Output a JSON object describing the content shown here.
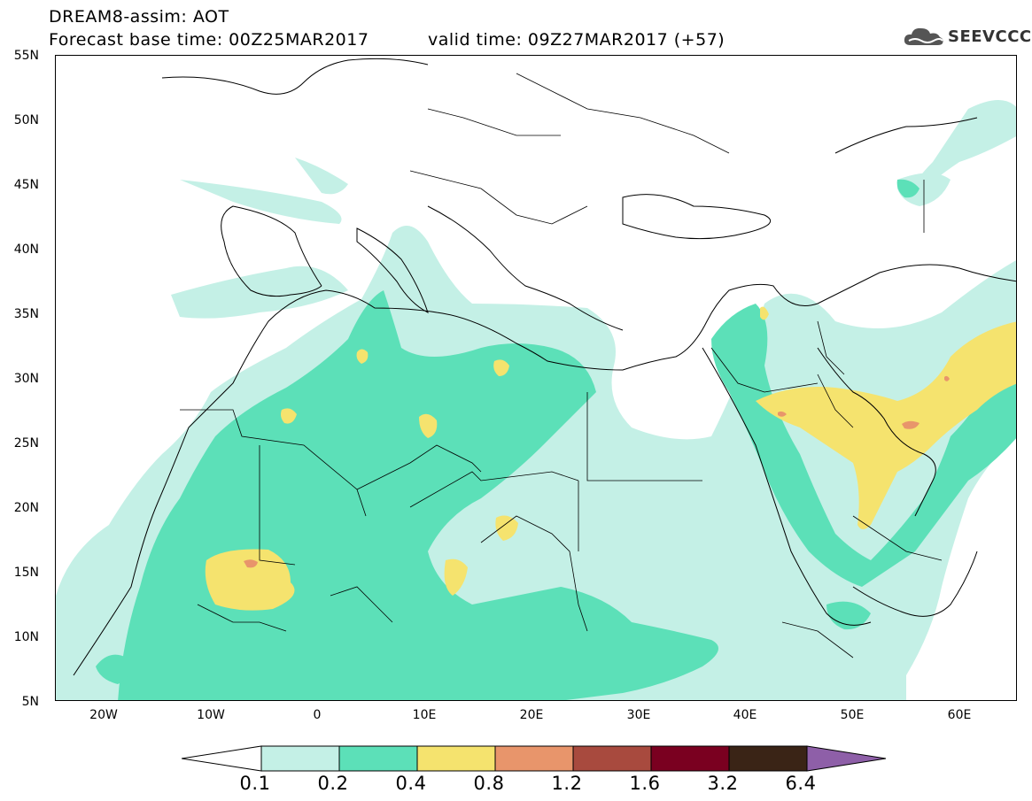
{
  "header": {
    "title_line1": "DREAM8-assim: AOT",
    "title_line2": "Forecast base time: 00Z25MAR2017",
    "valid_time": "valid time: 09Z27MAR2017 (+57)",
    "logo_text": "SEEVCCC"
  },
  "axes": {
    "lat_labels": [
      "55N",
      "50N",
      "45N",
      "40N",
      "35N",
      "30N",
      "25N",
      "20N",
      "15N",
      "10N",
      "5N"
    ],
    "lon_labels": [
      "20W",
      "10W",
      "0",
      "10E",
      "20E",
      "30E",
      "40E",
      "50E",
      "60E"
    ]
  },
  "colorbar": {
    "labels": [
      "0.1",
      "0.2",
      "0.4",
      "0.8",
      "1.2",
      "1.6",
      "3.2",
      "6.4"
    ],
    "colors": [
      "#c4f0e6",
      "#5ce0b8",
      "#f5e36e",
      "#e8956b",
      "#a84a3e",
      "#7a0020",
      "#3a2416",
      "#8e5fa8"
    ]
  },
  "map": {
    "extent": {
      "lon_min": -25,
      "lon_max": 65,
      "lat_min": 5,
      "lat_max": 55
    },
    "field": "AOT",
    "level_colors": {
      "l01": "#c4f0e6",
      "l02": "#5ce0b8",
      "l04": "#f5e36e",
      "l08": "#e8956b",
      "l12": "#a84a3e"
    }
  }
}
